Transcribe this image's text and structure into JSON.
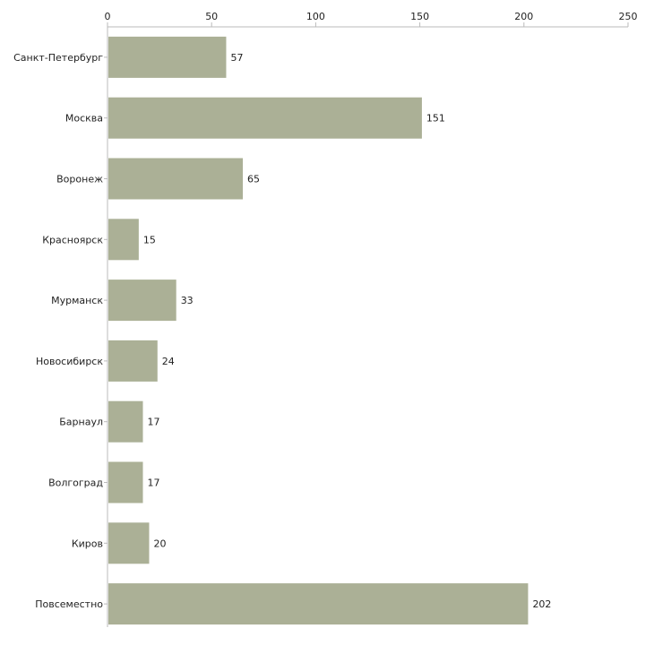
{
  "chart_data": {
    "type": "bar",
    "orientation": "horizontal",
    "title": "",
    "xlabel": "",
    "ylabel": "",
    "xlim": [
      0,
      250
    ],
    "x_ticks": [
      0,
      50,
      100,
      150,
      200,
      250
    ],
    "x_axis_position": "top",
    "grid": false,
    "bar_color": "#abb096",
    "categories": [
      "Санкт-Петербург",
      "Москва",
      "Воронеж",
      "Красноярск",
      "Мурманск",
      "Новосибирск",
      "Барнаул",
      "Волгоград",
      "Киров",
      "Повсеместно"
    ],
    "values": [
      57,
      151,
      65,
      15,
      33,
      24,
      17,
      17,
      20,
      202
    ]
  }
}
